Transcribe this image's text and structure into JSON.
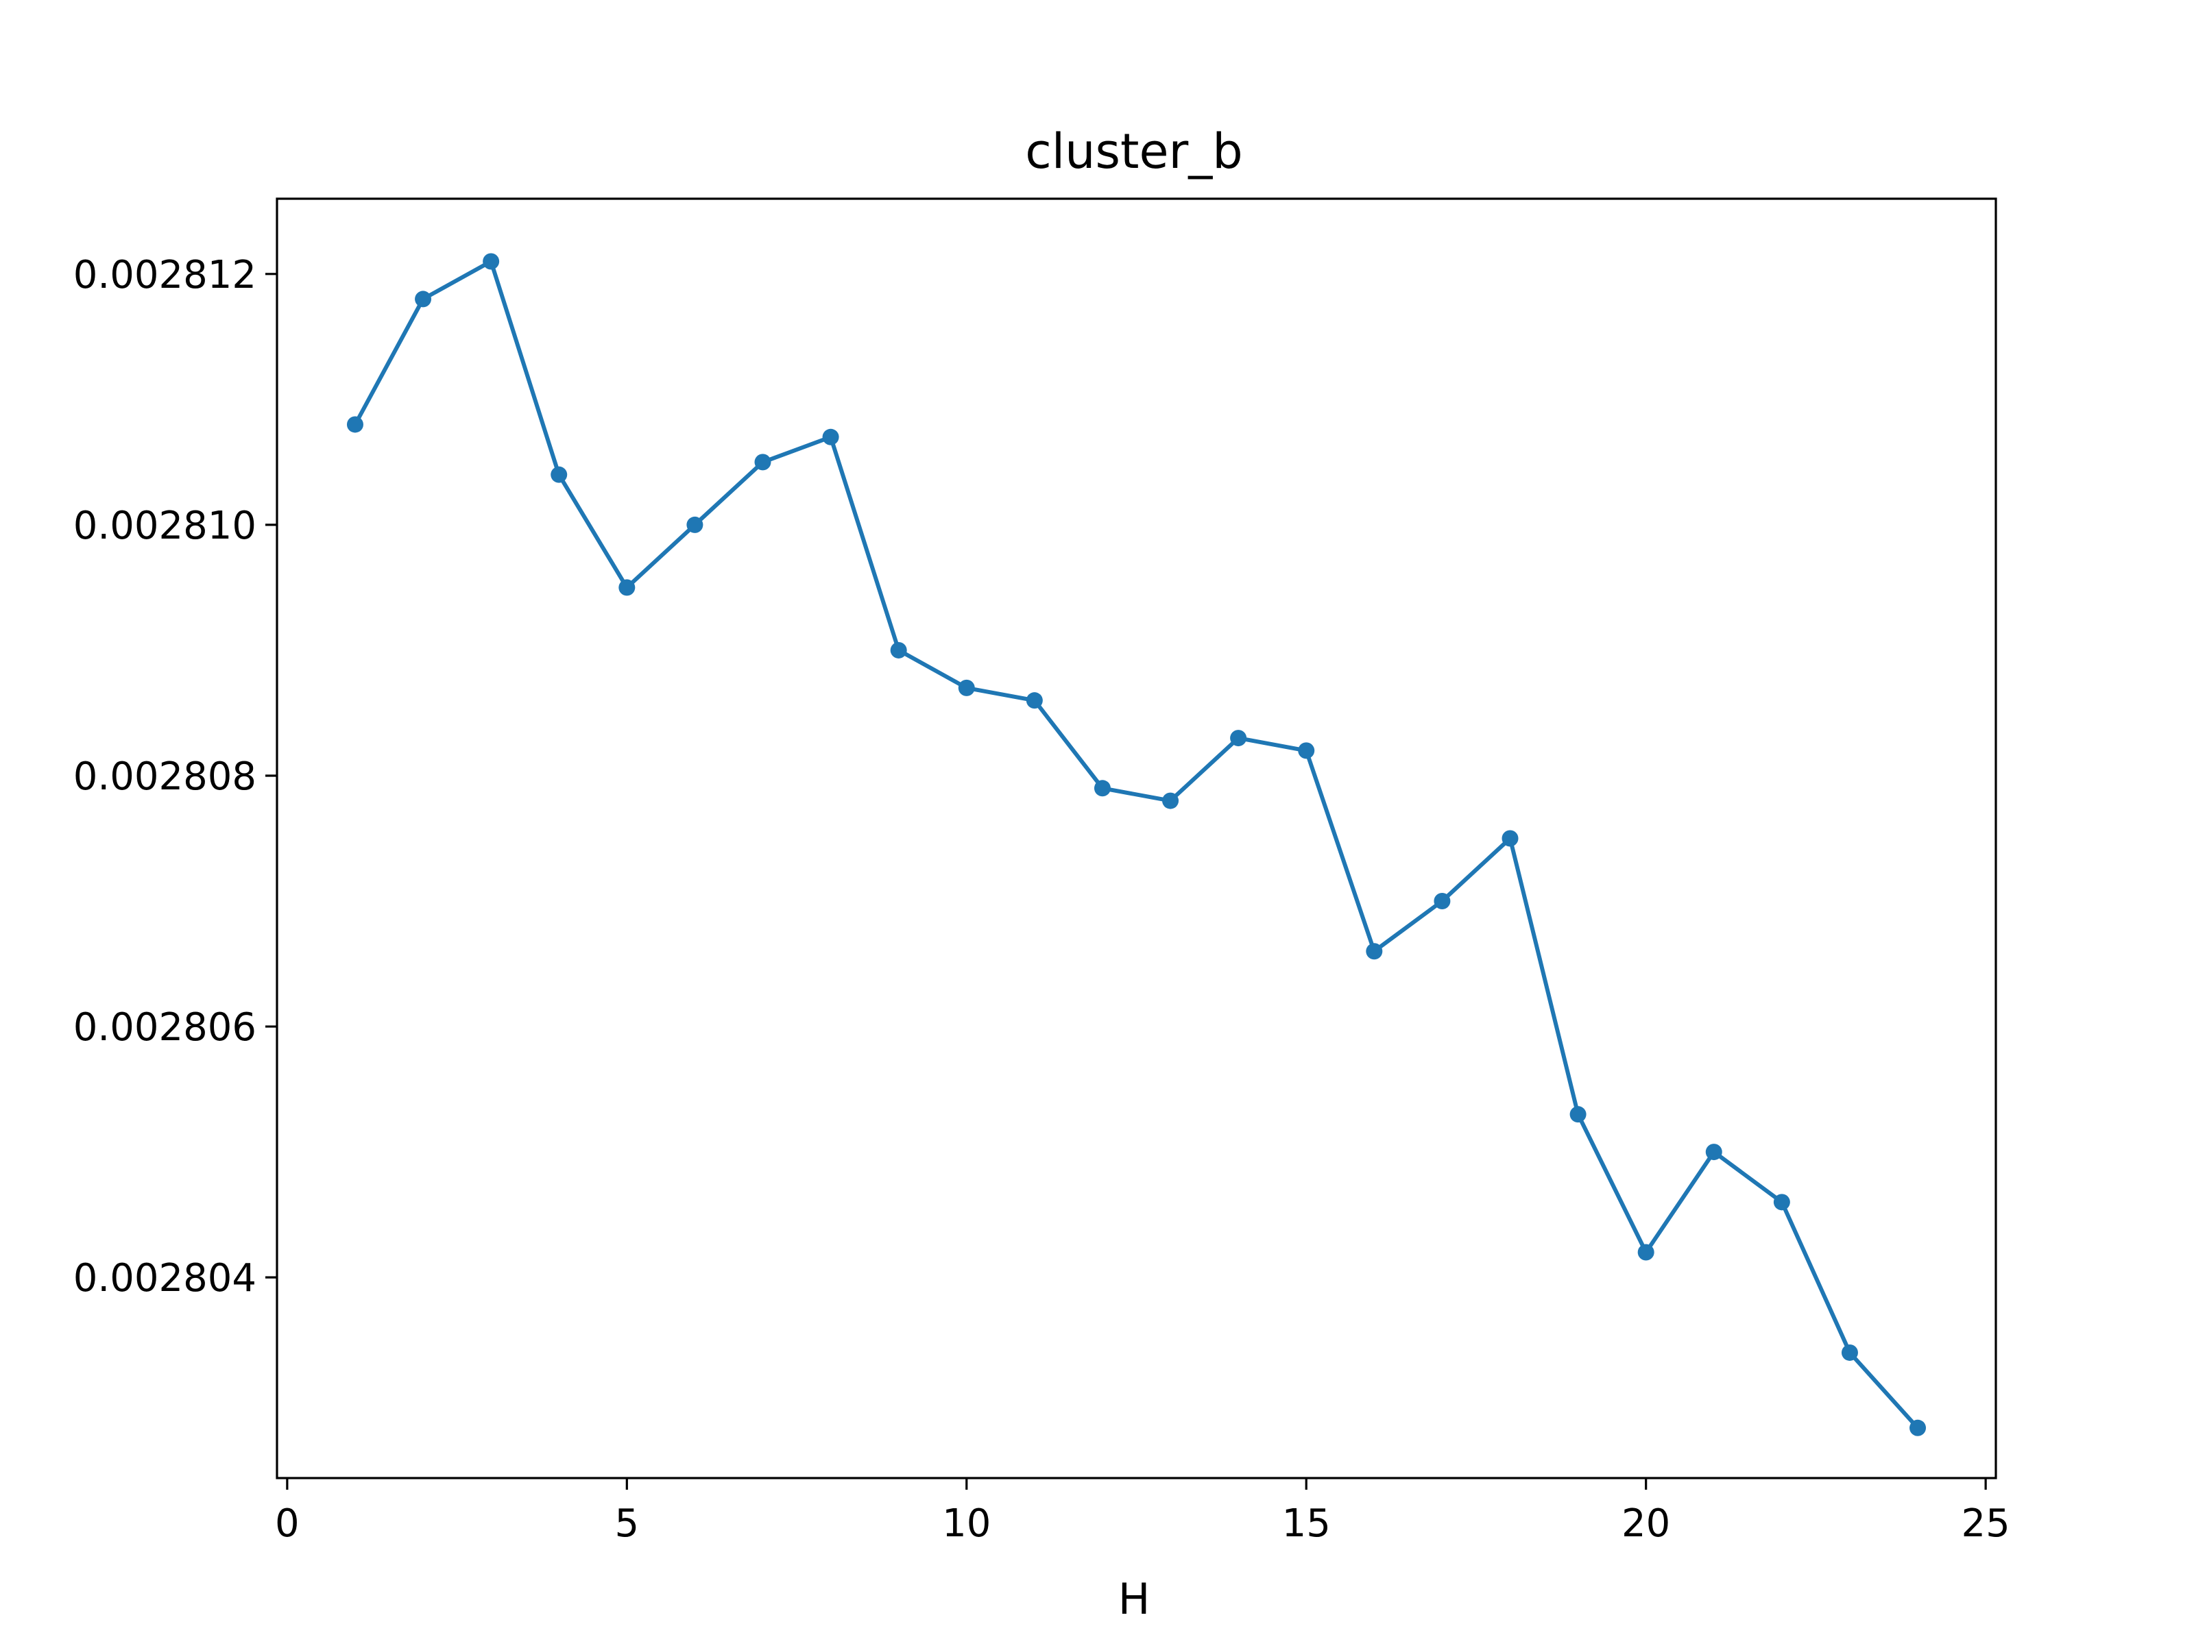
{
  "chart_data": {
    "type": "line",
    "title": "cluster_b",
    "xlabel": "H",
    "ylabel": "",
    "xlim": [
      -0.15,
      25.15
    ],
    "ylim": [
      0.0028024,
      0.0028126
    ],
    "x_ticks": [
      0,
      5,
      10,
      15,
      20,
      25
    ],
    "x_tick_labels": [
      "0",
      "5",
      "10",
      "15",
      "20",
      "25"
    ],
    "y_ticks": [
      0.002804,
      0.002806,
      0.002808,
      0.00281,
      0.002812
    ],
    "y_tick_labels": [
      "0.002804",
      "0.002806",
      "0.002808",
      "0.002810",
      "0.002812"
    ],
    "grid": false,
    "series": [
      {
        "color": "#1f77b4",
        "marker": "circle",
        "x": [
          1,
          2,
          3,
          4,
          5,
          6,
          7,
          8,
          9,
          10,
          11,
          12,
          13,
          14,
          15,
          16,
          17,
          18,
          19,
          20,
          21,
          22,
          23,
          24
        ],
        "y": [
          0.0028108,
          0.0028118,
          0.0028121,
          0.0028104,
          0.0028095,
          0.00281,
          0.0028105,
          0.0028107,
          0.002809,
          0.0028087,
          0.0028086,
          0.0028079,
          0.0028078,
          0.0028083,
          0.0028082,
          0.0028066,
          0.002807,
          0.0028075,
          0.0028053,
          0.0028042,
          0.002805,
          0.0028046,
          0.0028034,
          0.0028028
        ]
      }
    ]
  }
}
